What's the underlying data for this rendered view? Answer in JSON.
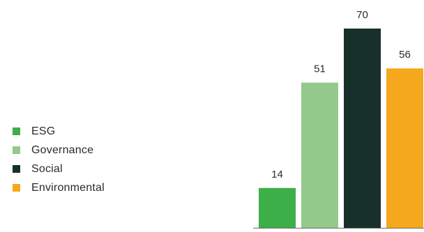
{
  "chart_data": {
    "type": "bar",
    "title": "",
    "xlabel": "",
    "ylabel": "",
    "categories": [
      "ESG",
      "Governance",
      "Social",
      "Environmental"
    ],
    "values": [
      14,
      51,
      70,
      56
    ],
    "colors": [
      "#3daf48",
      "#93c98a",
      "#17302a",
      "#f5a81c"
    ],
    "ylim": [
      0,
      70
    ],
    "grid": false,
    "legend_position": "left",
    "data_labels": [
      "14",
      "51",
      "70",
      "56"
    ]
  }
}
